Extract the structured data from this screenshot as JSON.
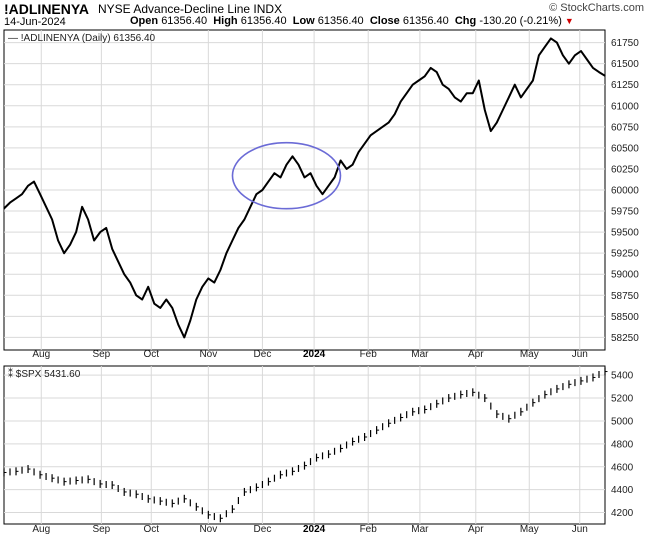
{
  "header": {
    "symbol": "!ADLINENYA",
    "description": "NYSE Advance-Decline Line  INDX",
    "brand": "© StockCharts.com",
    "date": "14-Jun-2024",
    "open_label": "Open",
    "open": "61356.40",
    "high_label": "High",
    "high": "61356.40",
    "low_label": "Low",
    "low": "61356.40",
    "close_label": "Close",
    "close": "61356.40",
    "chg_label": "Chg",
    "chg": "-130.20 (-0.21%)"
  },
  "colors": {
    "line": "#000000",
    "grid": "#d9d9d9",
    "annotation": "#6b6bd6",
    "down": "#d00000"
  },
  "chart_data": [
    {
      "type": "line",
      "legend": "!ADLINENYA (Daily) 61356.40",
      "ylim": [
        58100,
        61900
      ],
      "y_ticks": [
        58250,
        58500,
        58750,
        59000,
        59250,
        59500,
        59750,
        60000,
        60250,
        60500,
        60750,
        61000,
        61250,
        61500,
        61750
      ],
      "x_ticks": [
        "Aug",
        "Sep",
        "Oct",
        "Nov",
        "Dec",
        "2024",
        "Feb",
        "Mar",
        "Apr",
        "May",
        "Jun"
      ],
      "x_tick_pos": [
        0.062,
        0.162,
        0.245,
        0.34,
        0.43,
        0.516,
        0.606,
        0.692,
        0.785,
        0.874,
        0.958
      ],
      "grid": true,
      "annotation": "ellipse around Jan 2024",
      "series": [
        {
          "name": "!ADLINENYA",
          "x": [
            0,
            0.01,
            0.02,
            0.03,
            0.04,
            0.05,
            0.06,
            0.07,
            0.08,
            0.09,
            0.1,
            0.11,
            0.12,
            0.13,
            0.14,
            0.15,
            0.16,
            0.17,
            0.18,
            0.19,
            0.2,
            0.21,
            0.22,
            0.23,
            0.24,
            0.25,
            0.26,
            0.27,
            0.28,
            0.29,
            0.3,
            0.31,
            0.32,
            0.33,
            0.34,
            0.35,
            0.36,
            0.37,
            0.38,
            0.39,
            0.4,
            0.41,
            0.42,
            0.43,
            0.44,
            0.45,
            0.46,
            0.47,
            0.48,
            0.49,
            0.5,
            0.51,
            0.52,
            0.53,
            0.54,
            0.55,
            0.56,
            0.57,
            0.58,
            0.59,
            0.6,
            0.61,
            0.62,
            0.63,
            0.64,
            0.65,
            0.66,
            0.67,
            0.68,
            0.69,
            0.7,
            0.71,
            0.72,
            0.73,
            0.74,
            0.75,
            0.76,
            0.77,
            0.78,
            0.79,
            0.8,
            0.81,
            0.82,
            0.83,
            0.84,
            0.85,
            0.86,
            0.87,
            0.88,
            0.89,
            0.9,
            0.91,
            0.92,
            0.93,
            0.94,
            0.95,
            0.96,
            0.97,
            0.98,
            0.99,
            1.0
          ],
          "values": [
            59780,
            59850,
            59900,
            59950,
            60050,
            60100,
            59950,
            59800,
            59650,
            59400,
            59250,
            59350,
            59500,
            59800,
            59650,
            59400,
            59500,
            59550,
            59300,
            59150,
            59000,
            58900,
            58750,
            58700,
            58850,
            58650,
            58600,
            58700,
            58600,
            58400,
            58250,
            58450,
            58700,
            58850,
            58950,
            58900,
            59050,
            59250,
            59400,
            59550,
            59650,
            59800,
            59950,
            60000,
            60100,
            60200,
            60150,
            60300,
            60400,
            60300,
            60150,
            60200,
            60050,
            59950,
            60050,
            60150,
            60350,
            60250,
            60300,
            60450,
            60550,
            60650,
            60700,
            60750,
            60800,
            60900,
            61050,
            61150,
            61250,
            61300,
            61350,
            61450,
            61400,
            61250,
            61200,
            61100,
            61050,
            61150,
            61150,
            61300,
            60950,
            60700,
            60800,
            60950,
            61100,
            61250,
            61100,
            61200,
            61300,
            61600,
            61700,
            61800,
            61750,
            61600,
            61500,
            61600,
            61650,
            61550,
            61450,
            61400,
            61356.4
          ]
        }
      ]
    },
    {
      "type": "bar",
      "style": "ohlc",
      "legend": "$SPX 5431.60",
      "ylim": [
        4100,
        5480
      ],
      "y_ticks": [
        4200,
        4400,
        4600,
        4800,
        5000,
        5200,
        5400
      ],
      "x_ticks": [
        "Aug",
        "Sep",
        "Oct",
        "Nov",
        "Dec",
        "2024",
        "Feb",
        "Mar",
        "Apr",
        "May",
        "Jun"
      ],
      "x_tick_pos": [
        0.062,
        0.162,
        0.245,
        0.34,
        0.43,
        0.516,
        0.606,
        0.692,
        0.785,
        0.874,
        0.958
      ],
      "grid": true,
      "series": [
        {
          "name": "$SPX",
          "x": [
            0,
            0.02,
            0.04,
            0.06,
            0.08,
            0.1,
            0.12,
            0.14,
            0.16,
            0.18,
            0.2,
            0.22,
            0.24,
            0.26,
            0.28,
            0.3,
            0.32,
            0.34,
            0.36,
            0.38,
            0.4,
            0.42,
            0.44,
            0.46,
            0.48,
            0.5,
            0.52,
            0.54,
            0.56,
            0.58,
            0.6,
            0.62,
            0.64,
            0.66,
            0.68,
            0.7,
            0.72,
            0.74,
            0.76,
            0.78,
            0.8,
            0.82,
            0.84,
            0.86,
            0.88,
            0.9,
            0.92,
            0.94,
            0.96,
            0.98,
            1.0
          ],
          "values": [
            4550,
            4560,
            4580,
            4530,
            4500,
            4470,
            4480,
            4490,
            4450,
            4440,
            4380,
            4360,
            4320,
            4300,
            4280,
            4320,
            4250,
            4180,
            4150,
            4230,
            4380,
            4420,
            4470,
            4530,
            4560,
            4610,
            4680,
            4710,
            4760,
            4820,
            4860,
            4920,
            4980,
            5030,
            5080,
            5100,
            5150,
            5200,
            5230,
            5250,
            5200,
            5060,
            5020,
            5080,
            5160,
            5230,
            5280,
            5320,
            5350,
            5380,
            5431.6
          ]
        }
      ]
    }
  ]
}
